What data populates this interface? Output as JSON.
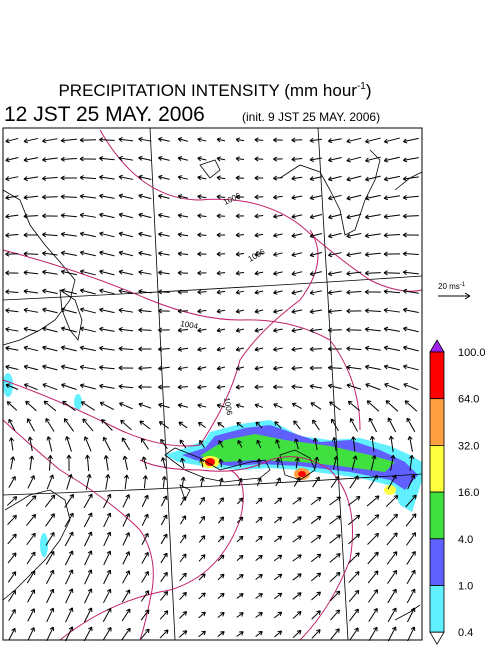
{
  "header": {
    "title": "PRECIPITATION INTENSITY (mm hour",
    "title_exponent": "-1",
    "title_close": ")",
    "time": "12 JST 25 MAY. 2006",
    "init": "(init. 9 JST 25 MAY. 2006)"
  },
  "vector_scale": {
    "label": "20 ms",
    "exponent": "-1"
  },
  "colorbar": {
    "labels": [
      "100.0",
      "64.0",
      "32.0",
      "16.0",
      "4.0",
      "1.0",
      "0.4"
    ],
    "colors": [
      "#a020f0",
      "#ff0000",
      "#ffa040",
      "#ffff40",
      "#40e040",
      "#6060ff",
      "#60f0ff",
      "#ffffff"
    ]
  },
  "isobar_labels": [
    "1006",
    "1006",
    "1004",
    "1006"
  ]
}
